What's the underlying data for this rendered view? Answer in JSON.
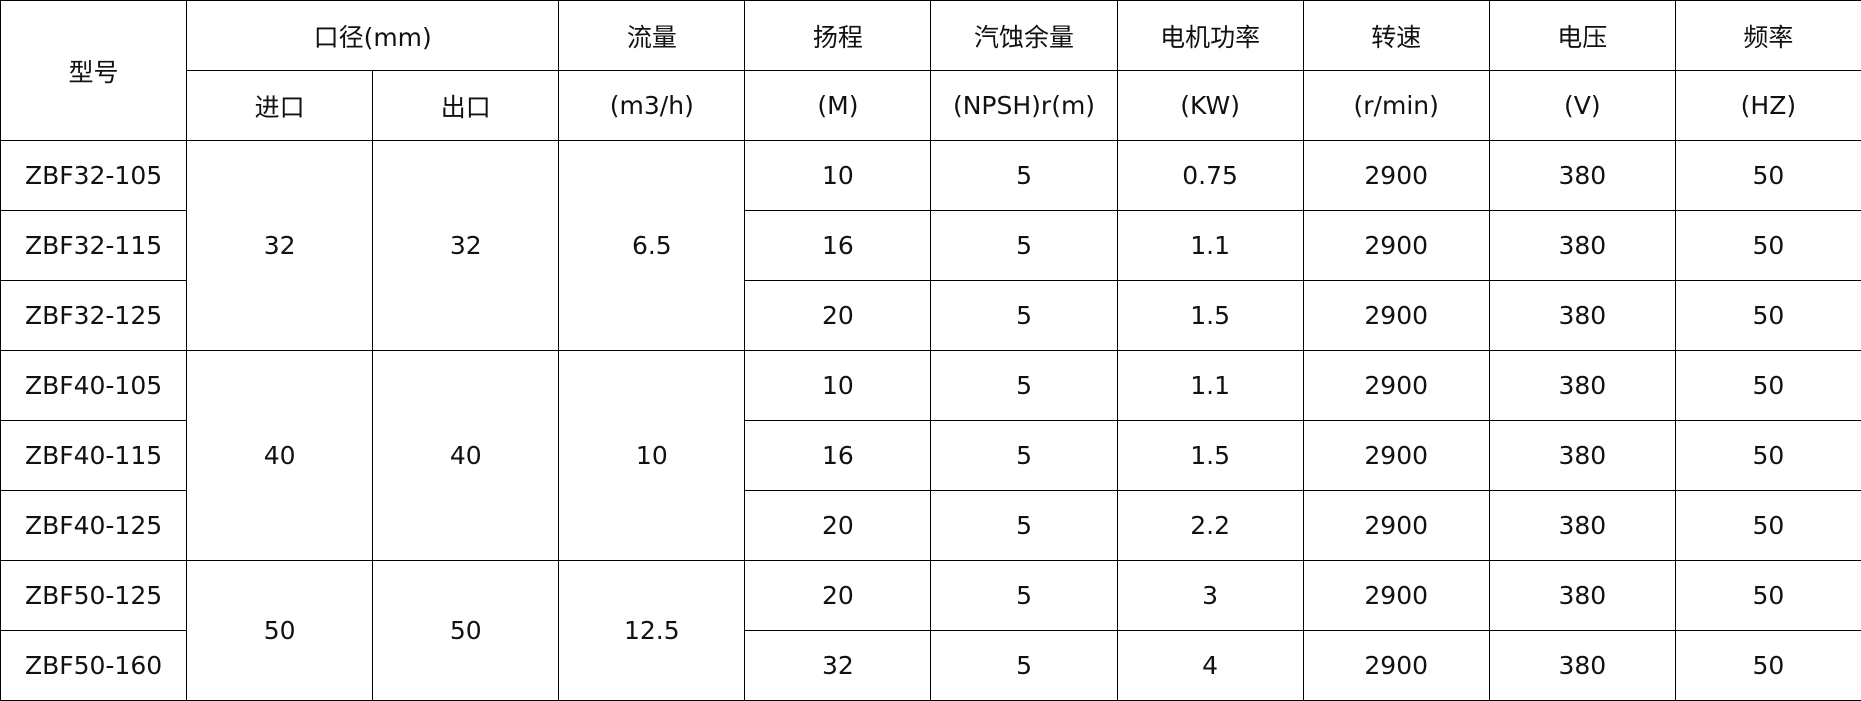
{
  "header": {
    "model": "型号",
    "diameter": "口径(mm)",
    "inlet": "进口",
    "outlet": "出口",
    "flow": "流量",
    "flow_unit": "(m3/h)",
    "head": "扬程",
    "head_unit": "(M)",
    "npsh": "汽蚀余量",
    "npsh_unit": "(NPSH)r(m)",
    "power": "电机功率",
    "power_unit": "(KW)",
    "speed": "转速",
    "speed_unit": "(r/min)",
    "voltage": "电压",
    "voltage_unit": "(V)",
    "frequency": "频率",
    "frequency_unit": "(HZ)"
  },
  "groups": [
    {
      "inlet": "32",
      "outlet": "32",
      "flow": "6.5"
    },
    {
      "inlet": "40",
      "outlet": "40",
      "flow": "10"
    },
    {
      "inlet": "50",
      "outlet": "50",
      "flow": "12.5"
    }
  ],
  "rows": [
    {
      "model": "ZBF32-105",
      "head": "10",
      "npsh": "5",
      "power": "0.75",
      "speed": "2900",
      "voltage": "380",
      "frequency": "50"
    },
    {
      "model": "ZBF32-115",
      "head": "16",
      "npsh": "5",
      "power": "1.1",
      "speed": "2900",
      "voltage": "380",
      "frequency": "50"
    },
    {
      "model": "ZBF32-125",
      "head": "20",
      "npsh": "5",
      "power": "1.5",
      "speed": "2900",
      "voltage": "380",
      "frequency": "50"
    },
    {
      "model": "ZBF40-105",
      "head": "10",
      "npsh": "5",
      "power": "1.1",
      "speed": "2900",
      "voltage": "380",
      "frequency": "50"
    },
    {
      "model": "ZBF40-115",
      "head": "16",
      "npsh": "5",
      "power": "1.5",
      "speed": "2900",
      "voltage": "380",
      "frequency": "50"
    },
    {
      "model": "ZBF40-125",
      "head": "20",
      "npsh": "5",
      "power": "2.2",
      "speed": "2900",
      "voltage": "380",
      "frequency": "50"
    },
    {
      "model": "ZBF50-125",
      "head": "20",
      "npsh": "5",
      "power": "3",
      "speed": "2900",
      "voltage": "380",
      "frequency": "50"
    },
    {
      "model": "ZBF50-160",
      "head": "32",
      "npsh": "5",
      "power": "4",
      "speed": "2900",
      "voltage": "380",
      "frequency": "50"
    }
  ]
}
